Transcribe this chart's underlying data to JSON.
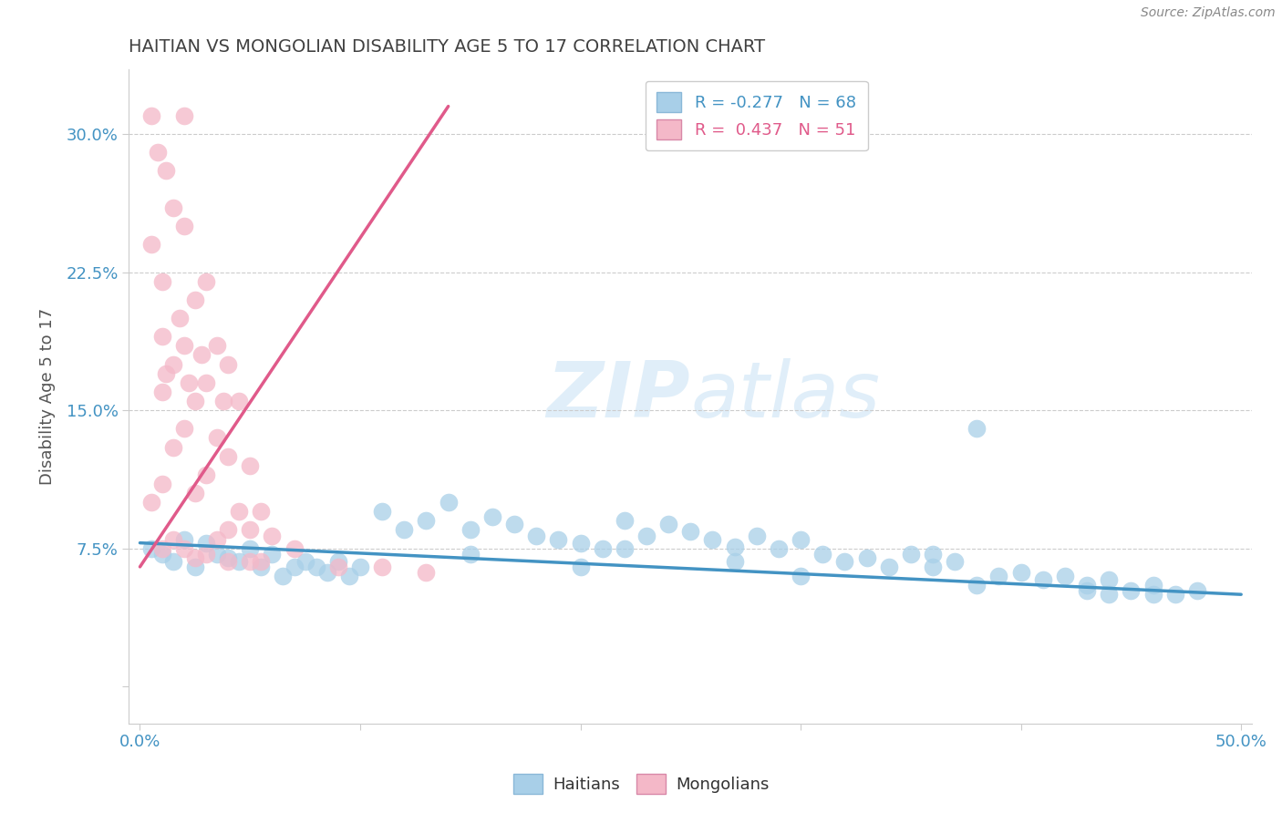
{
  "title": "HAITIAN VS MONGOLIAN DISABILITY AGE 5 TO 17 CORRELATION CHART",
  "source": "Source: ZipAtlas.com",
  "xlabel": "",
  "ylabel": "Disability Age 5 to 17",
  "xlim": [
    -0.005,
    0.505
  ],
  "ylim": [
    -0.02,
    0.335
  ],
  "xticks": [
    0.0,
    0.1,
    0.2,
    0.3,
    0.4,
    0.5
  ],
  "xticklabels": [
    "0.0%",
    "",
    "",
    "",
    "",
    "50.0%"
  ],
  "yticks": [
    0.0,
    0.075,
    0.15,
    0.225,
    0.3
  ],
  "yticklabels": [
    "",
    "7.5%",
    "15.0%",
    "22.5%",
    "30.0%"
  ],
  "blue_R": -0.277,
  "blue_N": 68,
  "pink_R": 0.437,
  "pink_N": 51,
  "blue_color": "#a8cfe8",
  "pink_color": "#f4b8c8",
  "blue_line_color": "#4393c3",
  "pink_line_color": "#e05a8a",
  "title_color": "#404040",
  "axis_label_color": "#4393c3",
  "watermark_color": "#cce4f5",
  "blue_scatter_x": [
    0.005,
    0.01,
    0.015,
    0.02,
    0.025,
    0.03,
    0.035,
    0.04,
    0.045,
    0.05,
    0.055,
    0.06,
    0.065,
    0.07,
    0.075,
    0.08,
    0.085,
    0.09,
    0.095,
    0.1,
    0.11,
    0.12,
    0.13,
    0.14,
    0.15,
    0.16,
    0.17,
    0.18,
    0.19,
    0.2,
    0.21,
    0.22,
    0.23,
    0.24,
    0.25,
    0.26,
    0.27,
    0.28,
    0.29,
    0.3,
    0.31,
    0.32,
    0.33,
    0.34,
    0.35,
    0.36,
    0.37,
    0.38,
    0.39,
    0.4,
    0.42,
    0.43,
    0.44,
    0.45,
    0.46,
    0.47,
    0.48,
    0.36,
    0.27,
    0.22,
    0.15,
    0.2,
    0.3,
    0.38,
    0.41,
    0.43,
    0.44,
    0.46
  ],
  "blue_scatter_y": [
    0.075,
    0.072,
    0.068,
    0.08,
    0.065,
    0.078,
    0.072,
    0.07,
    0.068,
    0.075,
    0.065,
    0.072,
    0.06,
    0.065,
    0.068,
    0.065,
    0.062,
    0.068,
    0.06,
    0.065,
    0.095,
    0.085,
    0.09,
    0.1,
    0.085,
    0.092,
    0.088,
    0.082,
    0.08,
    0.078,
    0.075,
    0.09,
    0.082,
    0.088,
    0.084,
    0.08,
    0.076,
    0.082,
    0.075,
    0.08,
    0.072,
    0.068,
    0.07,
    0.065,
    0.072,
    0.065,
    0.068,
    0.14,
    0.06,
    0.062,
    0.06,
    0.055,
    0.058,
    0.052,
    0.055,
    0.05,
    0.052,
    0.072,
    0.068,
    0.075,
    0.072,
    0.065,
    0.06,
    0.055,
    0.058,
    0.052,
    0.05,
    0.05
  ],
  "pink_scatter_x": [
    0.005,
    0.005,
    0.005,
    0.008,
    0.01,
    0.01,
    0.01,
    0.01,
    0.01,
    0.012,
    0.012,
    0.015,
    0.015,
    0.015,
    0.015,
    0.018,
    0.02,
    0.02,
    0.02,
    0.02,
    0.02,
    0.022,
    0.025,
    0.025,
    0.025,
    0.025,
    0.028,
    0.03,
    0.03,
    0.03,
    0.03,
    0.035,
    0.035,
    0.035,
    0.038,
    0.04,
    0.04,
    0.04,
    0.04,
    0.045,
    0.045,
    0.05,
    0.05,
    0.05,
    0.055,
    0.055,
    0.06,
    0.07,
    0.09,
    0.11,
    0.13
  ],
  "pink_scatter_y": [
    0.31,
    0.24,
    0.1,
    0.29,
    0.22,
    0.19,
    0.16,
    0.11,
    0.075,
    0.28,
    0.17,
    0.26,
    0.175,
    0.13,
    0.08,
    0.2,
    0.31,
    0.25,
    0.185,
    0.14,
    0.075,
    0.165,
    0.21,
    0.155,
    0.105,
    0.07,
    0.18,
    0.22,
    0.165,
    0.115,
    0.072,
    0.185,
    0.135,
    0.08,
    0.155,
    0.175,
    0.125,
    0.085,
    0.068,
    0.155,
    0.095,
    0.12,
    0.085,
    0.068,
    0.095,
    0.068,
    0.082,
    0.075,
    0.065,
    0.065,
    0.062
  ],
  "blue_trend_x": [
    0.0,
    0.5
  ],
  "blue_trend_y": [
    0.078,
    0.05
  ],
  "pink_trend_x": [
    0.0,
    0.14
  ],
  "pink_trend_y": [
    0.065,
    0.315
  ]
}
